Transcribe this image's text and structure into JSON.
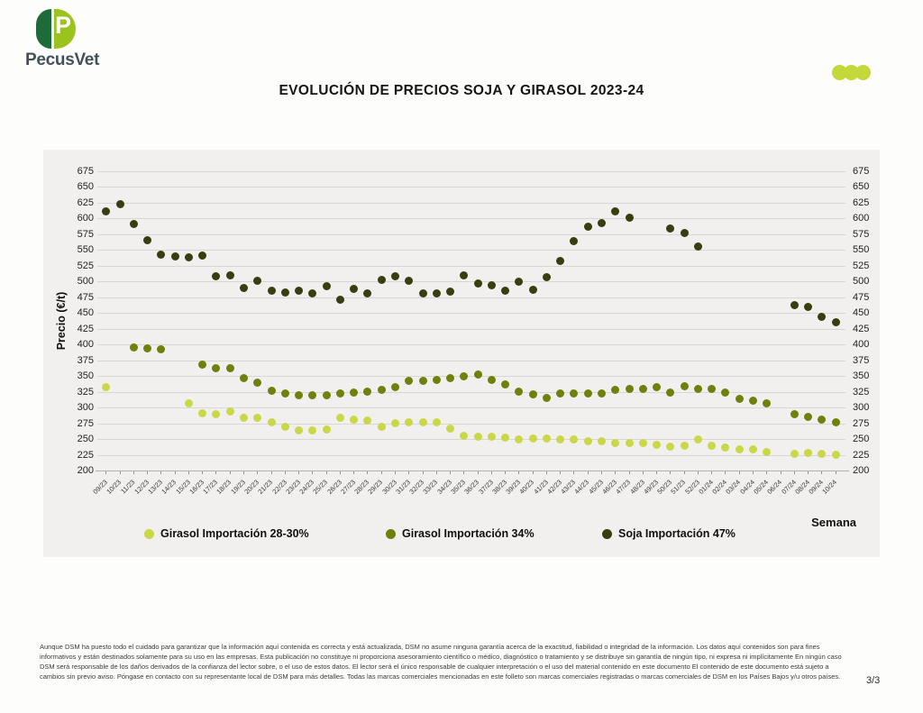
{
  "header": {
    "logo_text": "PecusVet",
    "logo_letter": "P",
    "title": "EVOLUCIÓN DE PRECIOS SOJA Y GIRASOL 2023-24"
  },
  "colors": {
    "brand_lime": "#c5d839",
    "logo_dark_green": "#1d6b38",
    "logo_lime": "#9cc31d",
    "panel_bg": "#f1f0ee",
    "girasol_28_30": "#c9d846",
    "girasol_34": "#70800b",
    "soja_47": "#383e10"
  },
  "chart_data": {
    "type": "scatter",
    "title": "EVOLUCIÓN DE PRECIOS SOJA Y GIRASOL 2023-24",
    "xlabel": "Semana",
    "ylabel": "Precio (€/t)",
    "ylim": [
      200,
      675
    ],
    "ytick_step": 25,
    "grid": true,
    "legend_position": "bottom",
    "categories": [
      "09/23",
      "10/23",
      "11/23",
      "12/23",
      "13/23",
      "14/23",
      "15/23",
      "16/23",
      "17/23",
      "18/23",
      "19/23",
      "20/23",
      "21/23",
      "22/23",
      "23/23",
      "24/23",
      "25/23",
      "26/23",
      "27/23",
      "28/23",
      "29/23",
      "30/23",
      "31/23",
      "32/23",
      "33/23",
      "34/23",
      "35/23",
      "36/23",
      "37/23",
      "38/23",
      "39/23",
      "40/23",
      "41/23",
      "42/23",
      "43/23",
      "44/23",
      "45/23",
      "46/23",
      "47/23",
      "48/23",
      "49/23",
      "50/23",
      "51/23",
      "52/23",
      "01/24",
      "02/24",
      "03/24",
      "04/24",
      "05/24",
      "06/24",
      "07/24",
      "08/24",
      "09/24",
      "10/24"
    ],
    "series": [
      {
        "name": "Girasol Importación 28-30%",
        "color": "#c9d846",
        "values": [
          333,
          null,
          null,
          null,
          null,
          null,
          307,
          291,
          289,
          293,
          284,
          284,
          277,
          269,
          263,
          264,
          265,
          283,
          281,
          279,
          269,
          275,
          277,
          276,
          276,
          266,
          255,
          253,
          253,
          252,
          250,
          251,
          251,
          250,
          249,
          247,
          246,
          244,
          243,
          243,
          241,
          238,
          239,
          249,
          239,
          236,
          234,
          233,
          230,
          null,
          227,
          228,
          226,
          225
        ]
      },
      {
        "name": "Girasol Importación 34%",
        "color": "#70800b",
        "values": [
          null,
          null,
          396,
          394,
          393,
          null,
          null,
          368,
          362,
          362,
          347,
          340,
          327,
          322,
          320,
          320,
          320,
          322,
          324,
          325,
          328,
          332,
          342,
          343,
          344,
          346,
          350,
          352,
          344,
          336,
          325,
          321,
          315,
          323,
          322,
          322,
          323,
          328,
          330,
          330,
          333,
          324,
          334,
          330,
          330,
          324,
          314,
          311,
          306,
          null,
          290,
          285,
          281,
          276
        ]
      },
      {
        "name": "Soja Importación 47%",
        "color": "#383e10",
        "values": [
          612,
          623,
          592,
          566,
          542,
          540,
          539,
          541,
          509,
          510,
          490,
          501,
          486,
          482,
          486,
          481,
          493,
          471,
          488,
          481,
          503,
          508,
          501,
          481,
          481,
          484,
          510,
          497,
          494,
          486,
          500,
          487,
          507,
          532,
          564,
          587,
          593,
          611,
          602,
          null,
          null,
          584,
          577,
          556,
          null,
          null,
          null,
          null,
          null,
          null,
          462,
          460,
          444,
          435
        ]
      }
    ]
  },
  "footer": {
    "disclaimer": "Aunque DSM ha puesto todo el cuidado para garantizar que la información aquí contenida es correcta y está actualizada, DSM no asume ninguna garantía acerca de la exactitud, fiabilidad o integridad de la información. Los datos aquí contenidos son para fines informativos y están destinados solamente para su uso en las empresas. Esta publicación no constituye ni proporciona asesoramiento científico o médico, diagnóstico o tratamiento y se distribuye sin garantía de ningún tipo, ni expresa ni implícitamente En ningún caso DSM será responsable de los daños derivados de la confianza del lector sobre, o el uso de estos datos. El lector será el único responsable de cualquier interpretación o el uso del material contenido en este documento El contenido de este documento está sujeto a cambios sin previo aviso. Póngase en contacto con su representante local de DSM para más detalles. Todas las marcas comerciales mencionadas en este folleto son marcas comerciales registradas o marcas comerciales de DSM en los Países Bajos y/u otros países.",
    "page": "3/3"
  }
}
